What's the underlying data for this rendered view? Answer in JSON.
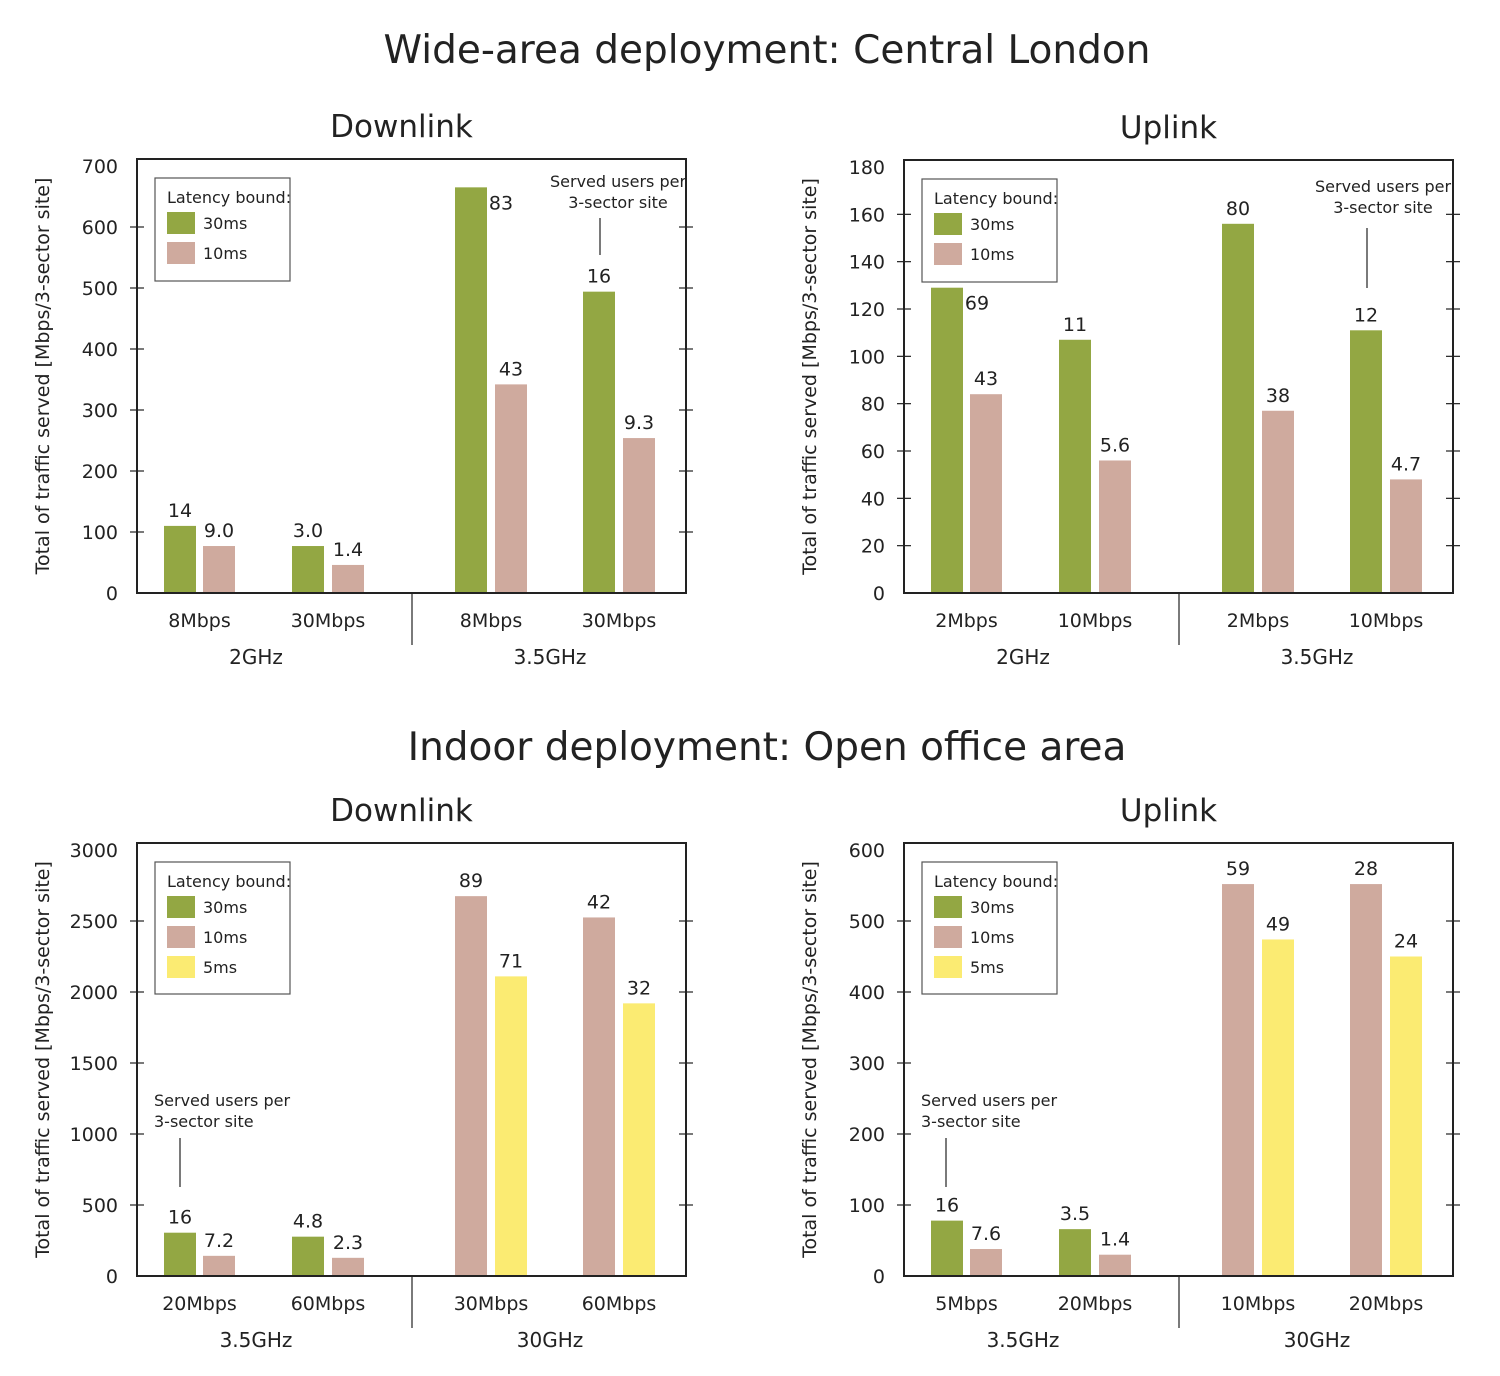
{
  "sections": [
    {
      "title": "Wide-area deployment: Central London"
    },
    {
      "title": "Indoor deployment: Open office area"
    }
  ],
  "colors": {
    "30ms": "#93a743",
    "10ms": "#cfaa9e",
    "5ms": "#fbeb72",
    "frame": "#222222"
  },
  "chart_data": [
    {
      "type": "bar",
      "title": "Downlink",
      "ylabel": "Total of traffic served [Mbps/3-sector site]",
      "ylim": [
        0,
        700
      ],
      "yticks": [
        0,
        100,
        200,
        300,
        400,
        500,
        600,
        700
      ],
      "legend_title": "Latency bound:",
      "legend": [
        "30ms",
        "10ms"
      ],
      "legend_placement": "top-left",
      "annotation": "Served users per 3-sector site",
      "annotation_lines": [
        "Served users per",
        "3-sector site"
      ],
      "groups": [
        {
          "name": "2GHz",
          "categories": [
            {
              "label": "8Mbps",
              "bars": [
                {
                  "series": "30ms",
                  "value": 110,
                  "label": "14"
                },
                {
                  "series": "10ms",
                  "value": 77,
                  "label": "9.0"
                }
              ]
            },
            {
              "label": "30Mbps",
              "bars": [
                {
                  "series": "30ms",
                  "value": 77,
                  "label": "3.0"
                },
                {
                  "series": "10ms",
                  "value": 46,
                  "label": "1.4"
                }
              ]
            }
          ]
        },
        {
          "name": "3.5GHz",
          "categories": [
            {
              "label": "8Mbps",
              "bars": [
                {
                  "series": "30ms",
                  "value": 665,
                  "label": "83"
                },
                {
                  "series": "10ms",
                  "value": 342,
                  "label": "43"
                }
              ]
            },
            {
              "label": "30Mbps",
              "bars": [
                {
                  "series": "30ms",
                  "value": 494,
                  "label": "16"
                },
                {
                  "series": "10ms",
                  "value": 254,
                  "label": "9.3"
                }
              ]
            }
          ]
        }
      ]
    },
    {
      "type": "bar",
      "title": "Uplink",
      "ylabel": "Total of traffic served [Mbps/3-sector site]",
      "ylim": [
        0,
        180
      ],
      "yticks": [
        0,
        20,
        40,
        60,
        80,
        100,
        120,
        140,
        160,
        180
      ],
      "legend_title": "Latency bound:",
      "legend": [
        "30ms",
        "10ms"
      ],
      "legend_placement": "top-left",
      "annotation": "Served users per 3-sector site",
      "annotation_lines": [
        "Served users per",
        "3-sector site"
      ],
      "groups": [
        {
          "name": "2GHz",
          "categories": [
            {
              "label": "2Mbps",
              "bars": [
                {
                  "series": "30ms",
                  "value": 129,
                  "label": "69"
                },
                {
                  "series": "10ms",
                  "value": 84,
                  "label": "43"
                }
              ]
            },
            {
              "label": "10Mbps",
              "bars": [
                {
                  "series": "30ms",
                  "value": 107,
                  "label": "11"
                },
                {
                  "series": "10ms",
                  "value": 56,
                  "label": "5.6"
                }
              ]
            }
          ]
        },
        {
          "name": "3.5GHz",
          "categories": [
            {
              "label": "2Mbps",
              "bars": [
                {
                  "series": "30ms",
                  "value": 156,
                  "label": "80"
                },
                {
                  "series": "10ms",
                  "value": 77,
                  "label": "38"
                }
              ]
            },
            {
              "label": "10Mbps",
              "bars": [
                {
                  "series": "30ms",
                  "value": 111,
                  "label": "12"
                },
                {
                  "series": "10ms",
                  "value": 48,
                  "label": "4.7"
                }
              ]
            }
          ]
        }
      ]
    },
    {
      "type": "bar",
      "title": "Downlink",
      "ylabel": "Total of traffic served [Mbps/3-sector site]",
      "ylim": [
        0,
        3000
      ],
      "yticks": [
        0,
        500,
        1000,
        1500,
        2000,
        2500,
        3000
      ],
      "legend_title": "Latency bound:",
      "legend": [
        "30ms",
        "10ms",
        "5ms"
      ],
      "legend_placement": "top-left",
      "annotation": "Served users per 3-sector site",
      "annotation_lines": [
        "Served users per",
        "3-sector site"
      ],
      "groups": [
        {
          "name": "3.5GHz",
          "categories": [
            {
              "label": "20Mbps",
              "bars": [
                {
                  "series": "30ms",
                  "value": 305,
                  "label": "16"
                },
                {
                  "series": "10ms",
                  "value": 142,
                  "label": "7.2"
                }
              ]
            },
            {
              "label": "60Mbps",
              "bars": [
                {
                  "series": "30ms",
                  "value": 277,
                  "label": "4.8"
                },
                {
                  "series": "10ms",
                  "value": 128,
                  "label": "2.3"
                }
              ]
            }
          ]
        },
        {
          "name": "30GHz",
          "categories": [
            {
              "label": "30Mbps",
              "bars": [
                {
                  "series": "10ms",
                  "value": 2675,
                  "label": "89"
                },
                {
                  "series": "5ms",
                  "value": 2110,
                  "label": "71"
                }
              ]
            },
            {
              "label": "60Mbps",
              "bars": [
                {
                  "series": "10ms",
                  "value": 2525,
                  "label": "42"
                },
                {
                  "series": "5ms",
                  "value": 1920,
                  "label": "32"
                }
              ]
            }
          ]
        }
      ]
    },
    {
      "type": "bar",
      "title": "Uplink",
      "ylabel": "Total of traffic served [Mbps/3-sector site]",
      "ylim": [
        0,
        600
      ],
      "yticks": [
        0,
        100,
        200,
        300,
        400,
        500,
        600
      ],
      "legend_title": "Latency bound:",
      "legend": [
        "30ms",
        "10ms",
        "5ms"
      ],
      "legend_placement": "top-left",
      "annotation": "Served users per 3-sector site",
      "annotation_lines": [
        "Served users per",
        "3-sector site"
      ],
      "groups": [
        {
          "name": "3.5GHz",
          "categories": [
            {
              "label": "5Mbps",
              "bars": [
                {
                  "series": "30ms",
                  "value": 78,
                  "label": "16"
                },
                {
                  "series": "10ms",
                  "value": 38,
                  "label": "7.6"
                }
              ]
            },
            {
              "label": "20Mbps",
              "bars": [
                {
                  "series": "30ms",
                  "value": 66,
                  "label": "3.5"
                },
                {
                  "series": "10ms",
                  "value": 30,
                  "label": "1.4"
                }
              ]
            }
          ]
        },
        {
          "name": "30GHz",
          "categories": [
            {
              "label": "10Mbps",
              "bars": [
                {
                  "series": "10ms",
                  "value": 552,
                  "label": "59"
                },
                {
                  "series": "5ms",
                  "value": 474,
                  "label": "49"
                }
              ]
            },
            {
              "label": "20Mbps",
              "bars": [
                {
                  "series": "10ms",
                  "value": 552,
                  "label": "28"
                },
                {
                  "series": "5ms",
                  "value": 450,
                  "label": "24"
                }
              ]
            }
          ]
        }
      ]
    }
  ]
}
